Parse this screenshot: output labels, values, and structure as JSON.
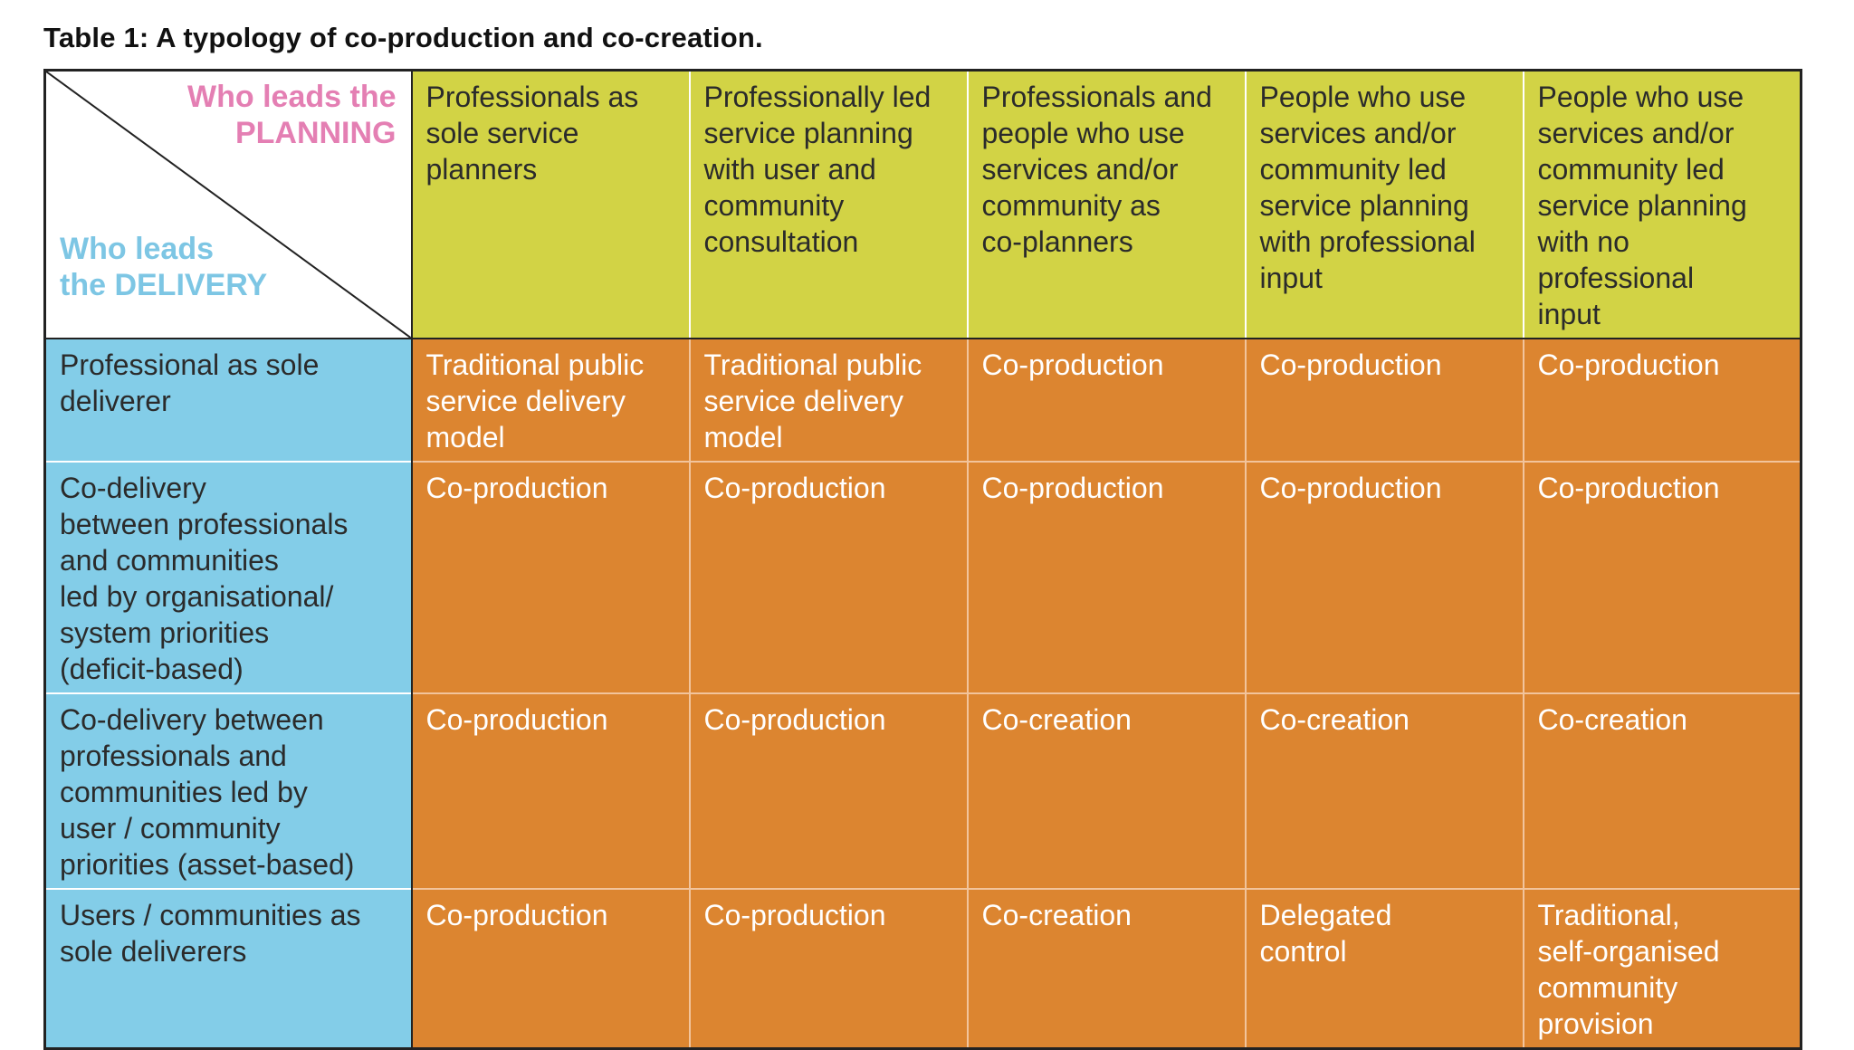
{
  "caption": "Table 1: A typology of co-production and co-creation.",
  "corner": {
    "planning_line1": "Who leads the",
    "planning_line2": "PLANNING",
    "delivery_line1": "Who leads",
    "delivery_line2": "the DELIVERY"
  },
  "planning_headers": [
    [
      "Professionals as",
      "sole service",
      "planners"
    ],
    [
      "Professionally led",
      "service planning",
      "with user and",
      "community",
      "consultation"
    ],
    [
      "Professionals and",
      "people who use",
      "services and/or",
      "community as",
      "co-planners"
    ],
    [
      "People who use",
      "services and/or",
      "community led",
      "service planning",
      "with professional",
      "input"
    ],
    [
      "People who use",
      "services and/or",
      "community led",
      "service planning",
      "with no",
      "professional",
      "input"
    ]
  ],
  "rows": [
    {
      "label": [
        "Professional as sole",
        "deliverer"
      ],
      "cells": [
        [
          "Traditional public",
          "service delivery",
          "model"
        ],
        [
          "Traditional public",
          "service delivery",
          "model"
        ],
        [
          "Co-production"
        ],
        [
          "Co-production"
        ],
        [
          "Co-production"
        ]
      ]
    },
    {
      "label": [
        "Co-delivery",
        "between professionals",
        "and communities",
        "led by organisational/",
        "system priorities",
        "(deficit-based)"
      ],
      "cells": [
        [
          "Co-production"
        ],
        [
          "Co-production"
        ],
        [
          "Co-production"
        ],
        [
          "Co-production"
        ],
        [
          "Co-production"
        ]
      ]
    },
    {
      "label": [
        "Co-delivery between",
        "professionals and",
        "communities led by",
        "user / community",
        "priorities (asset-based)"
      ],
      "cells": [
        [
          "Co-production"
        ],
        [
          "Co-production"
        ],
        [
          "Co-creation"
        ],
        [
          "Co-creation"
        ],
        [
          "Co-creation"
        ]
      ]
    },
    {
      "label": [
        "Users / communities as",
        "sole deliverers"
      ],
      "cells": [
        [
          "Co-production"
        ],
        [
          "Co-production"
        ],
        [
          "Co-creation"
        ],
        [
          "Delegated",
          "control"
        ],
        [
          "Traditional,",
          "self-organised",
          "community",
          "provision"
        ]
      ]
    }
  ],
  "colors": {
    "planning_header_bg": "#d2d345",
    "delivery_header_bg": "#83cde8",
    "cell_bg": "#dc8530",
    "planning_label": "#e47fb3",
    "delivery_label": "#7dc6e4"
  }
}
